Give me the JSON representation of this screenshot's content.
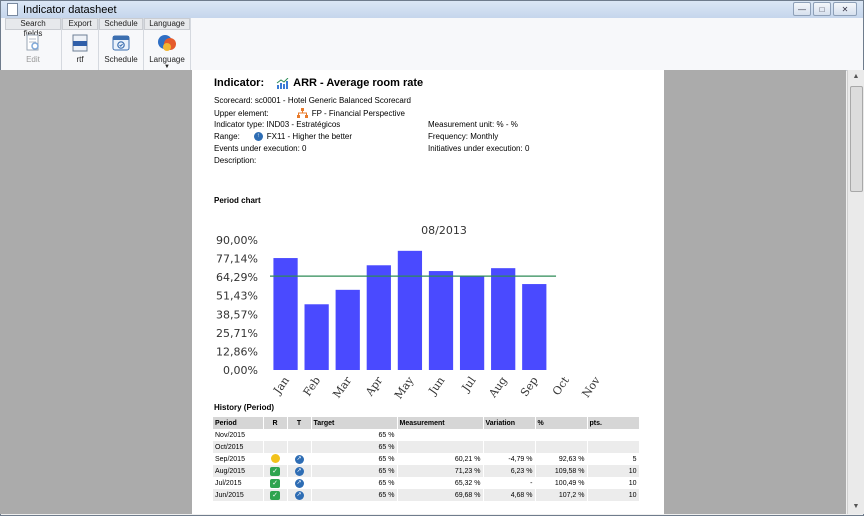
{
  "window": {
    "title": "Indicator datasheet"
  },
  "ribbon": {
    "groups": [
      {
        "label": "Search fields",
        "button": "Edit"
      },
      {
        "label": "Export",
        "button": "rtf"
      },
      {
        "label": "Schedule",
        "button": "Schedule"
      },
      {
        "label": "Language",
        "button": "Language"
      }
    ],
    "rtf_badge": "RTF"
  },
  "indicator": {
    "label": "Indicator:",
    "name": "ARR - Average room rate",
    "scorecard": "Scorecard: sc0001 - Hotel Generic Balanced Scorecard",
    "upper_label": "Upper element:",
    "upper_value": "FP - Financial Perspective",
    "type": "Indicator type: IND03 - Estratégicos",
    "unit": "Measurement unit: % - %",
    "range_label": "Range:",
    "range_value": "FX11 - Higher the better",
    "frequency": "Frequency: Monthly",
    "events": "Events under execution: 0",
    "initiatives": "Initiatives under execution: 0",
    "description": "Description:"
  },
  "sections": {
    "chart": "Period chart",
    "history": "History (Period)"
  },
  "chart_data": {
    "type": "bar",
    "title": "08/2013",
    "categories": [
      "Jan",
      "Feb",
      "Mar",
      "Apr",
      "May",
      "Jun",
      "Jul",
      "Aug",
      "Sep",
      "Oct",
      "Nov"
    ],
    "values": [
      77.5,
      45.5,
      55.5,
      72.5,
      82.5,
      68.5,
      65,
      70.5,
      59.5,
      null,
      null
    ],
    "target": 65,
    "yticks": [
      "90,00%",
      "77,14%",
      "64,29%",
      "51,43%",
      "38,57%",
      "25,71%",
      "12,86%",
      "0,00%"
    ],
    "ylim": [
      0,
      90
    ],
    "colors": {
      "bar": "#4a4aff",
      "target": "#2e8b57"
    }
  },
  "history": {
    "headers": [
      "Period",
      "R",
      "T",
      "Target",
      "Measurement",
      "Variation",
      "%",
      "pts."
    ],
    "rows": [
      {
        "period": "Nov/2015",
        "r": "",
        "t": "",
        "target": "65 %",
        "measurement": "",
        "variation": "",
        "pct": "",
        "pts": ""
      },
      {
        "period": "Oct/2015",
        "r": "",
        "t": "",
        "target": "65 %",
        "measurement": "",
        "variation": "",
        "pct": "",
        "pts": ""
      },
      {
        "period": "Sep/2015",
        "r": "warn",
        "t": "up",
        "target": "65 %",
        "measurement": "60,21 %",
        "variation": "-4,79 %",
        "pct": "92,63 %",
        "pts": "5"
      },
      {
        "period": "Aug/2015",
        "r": "ok",
        "t": "up",
        "target": "65 %",
        "measurement": "71,23 %",
        "variation": "6,23 %",
        "pct": "109,58 %",
        "pts": "10"
      },
      {
        "period": "Jul/2015",
        "r": "ok",
        "t": "up",
        "target": "65 %",
        "measurement": "65,32 %",
        "variation": "-",
        "pct": "100,49 %",
        "pts": "10"
      },
      {
        "period": "Jun/2015",
        "r": "ok",
        "t": "up",
        "target": "65 %",
        "measurement": "69,68 %",
        "variation": "4,68 %",
        "pct": "107,2 %",
        "pts": "10"
      }
    ]
  }
}
